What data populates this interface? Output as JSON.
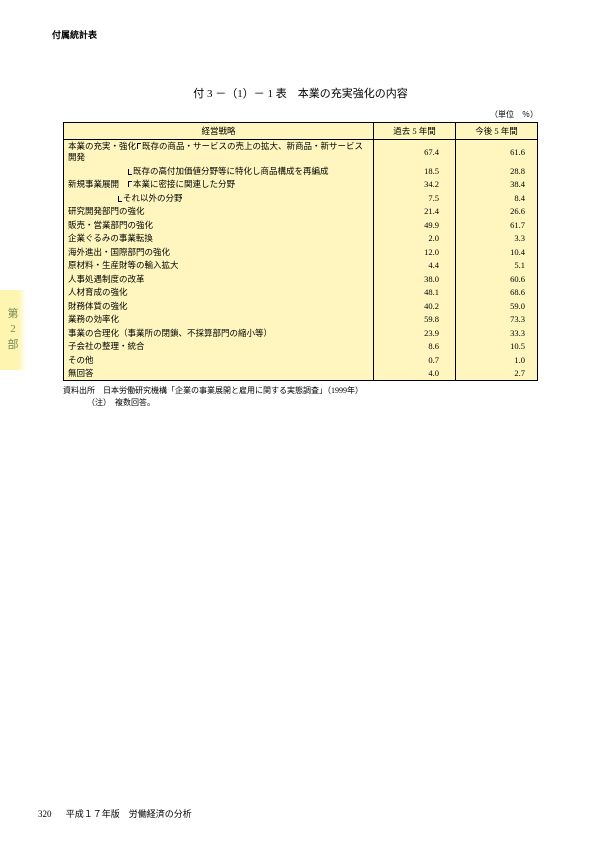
{
  "header": "付属統計表",
  "sideTab": {
    "line1": "第",
    "line2": "2",
    "line3": "部"
  },
  "tableTitle": "付 3 －（1）－ 1 表　本業の充実強化の内容",
  "unit": "（単位　％）",
  "columns": {
    "c1": "経営戦略",
    "c2": "過去 5 年間",
    "c3": "今後 5 年間"
  },
  "rows": [
    {
      "label": "本業の充実・強化",
      "sub": "既存の商品・サービスの売上の拡大、新商品・新サービス開発",
      "v1": "67.4",
      "v2": "61.6",
      "type": "main-sub"
    },
    {
      "label": "",
      "sub": "既存の高付加価値分野等に特化し商品構成を再編成",
      "v1": "18.5",
      "v2": "28.8",
      "type": "sub-only"
    },
    {
      "label": "新規事業展開",
      "sub": "本業に密接に関連した分野",
      "v1": "34.2",
      "v2": "38.4",
      "type": "main-sub2"
    },
    {
      "label": "",
      "sub": "それ以外の分野",
      "v1": "7.5",
      "v2": "8.4",
      "type": "sub-only2"
    },
    {
      "label": "研究開発部門の強化",
      "v1": "21.4",
      "v2": "26.6",
      "type": "plain"
    },
    {
      "label": "販売・営業部門の強化",
      "v1": "49.9",
      "v2": "61.7",
      "type": "plain"
    },
    {
      "label": "企業ぐるみの事業転換",
      "v1": "2.0",
      "v2": "3.3",
      "type": "plain"
    },
    {
      "label": "海外進出・国際部門の強化",
      "v1": "12.0",
      "v2": "10.4",
      "type": "plain"
    },
    {
      "label": "原材料・生産財等の輸入拡大",
      "v1": "4.4",
      "v2": "5.1",
      "type": "plain"
    },
    {
      "label": "人事処遇制度の改革",
      "v1": "38.0",
      "v2": "60.6",
      "type": "plain"
    },
    {
      "label": "人材育成の強化",
      "v1": "48.1",
      "v2": "68.6",
      "type": "plain"
    },
    {
      "label": "財務体質の強化",
      "v1": "40.2",
      "v2": "59.0",
      "type": "plain"
    },
    {
      "label": "業務の効率化",
      "v1": "59.8",
      "v2": "73.3",
      "type": "plain"
    },
    {
      "label": "事業の合理化（事業所の閉鎖、不採算部門の縮小等）",
      "v1": "23.9",
      "v2": "33.3",
      "type": "plain"
    },
    {
      "label": "子会社の整理・統合",
      "v1": "8.6",
      "v2": "10.5",
      "type": "plain"
    },
    {
      "label": "その他",
      "v1": "0.7",
      "v2": "1.0",
      "type": "plain"
    },
    {
      "label": "無回答",
      "v1": "4.0",
      "v2": "2.7",
      "type": "plain",
      "last": true
    }
  ],
  "source": "資料出所　日本労働研究機構「企業の事業展開と雇用に関する実態調査」（1999年）",
  "note": "（注）　複数回答。",
  "footer": {
    "pageNum": "320",
    "text": "平成１７年版　労働経済の分析"
  }
}
